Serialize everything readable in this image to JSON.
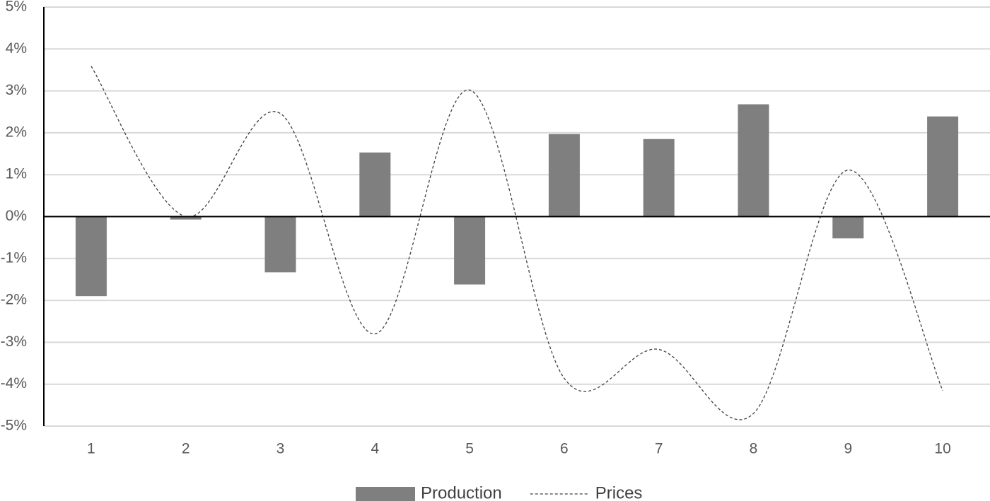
{
  "chart_data": {
    "type": "combo",
    "categories": [
      "1",
      "2",
      "3",
      "4",
      "5",
      "6",
      "7",
      "8",
      "9",
      "10"
    ],
    "series": [
      {
        "name": "Production",
        "type": "bar",
        "color": "#7f7f7f",
        "values": [
          -1.9,
          -0.07,
          -1.33,
          1.53,
          -1.62,
          1.97,
          1.85,
          2.68,
          -0.52,
          2.39
        ]
      },
      {
        "name": "Prices",
        "type": "line",
        "color": "#404040",
        "dashed": true,
        "smooth": true,
        "values": [
          3.59,
          0.0,
          2.46,
          -2.8,
          3.02,
          -3.86,
          -3.17,
          -4.7,
          1.11,
          -4.15
        ]
      }
    ],
    "ylim": [
      -5,
      5
    ],
    "yticks": [
      {
        "value": -5,
        "label": "-5%"
      },
      {
        "value": -4,
        "label": "-4%"
      },
      {
        "value": -3,
        "label": "-3%"
      },
      {
        "value": -2,
        "label": "-2%"
      },
      {
        "value": -1,
        "label": "-1%"
      },
      {
        "value": 0,
        "label": "0%"
      },
      {
        "value": 1,
        "label": "1%"
      },
      {
        "value": 2,
        "label": "2%"
      },
      {
        "value": 3,
        "label": "3%"
      },
      {
        "value": 4,
        "label": "4%"
      },
      {
        "value": 5,
        "label": "5%"
      }
    ],
    "grid": true,
    "legend": "bottom"
  }
}
